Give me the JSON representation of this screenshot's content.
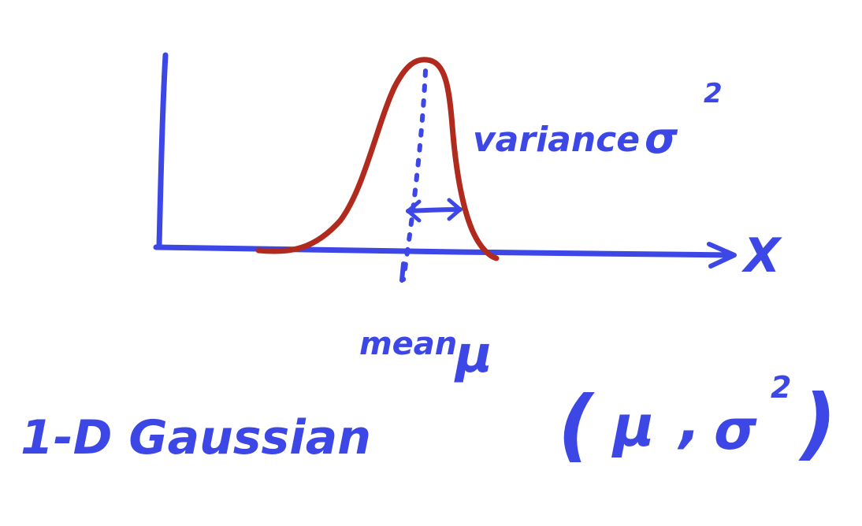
{
  "colors": {
    "ink_blue": "#3d47e6",
    "ink_red": "#b02a1d",
    "background": "#ffffff"
  },
  "labels": {
    "variance": "variance",
    "variance_symbol": "σ",
    "variance_superscript": "2",
    "x_axis": "X",
    "mean": "mean",
    "mean_symbol": "μ",
    "title": "1-D Gaussian",
    "params_open": "(",
    "params_mu": "μ",
    "params_comma": ",",
    "params_sigma": "σ",
    "params_superscript": "2",
    "params_close": ")"
  }
}
